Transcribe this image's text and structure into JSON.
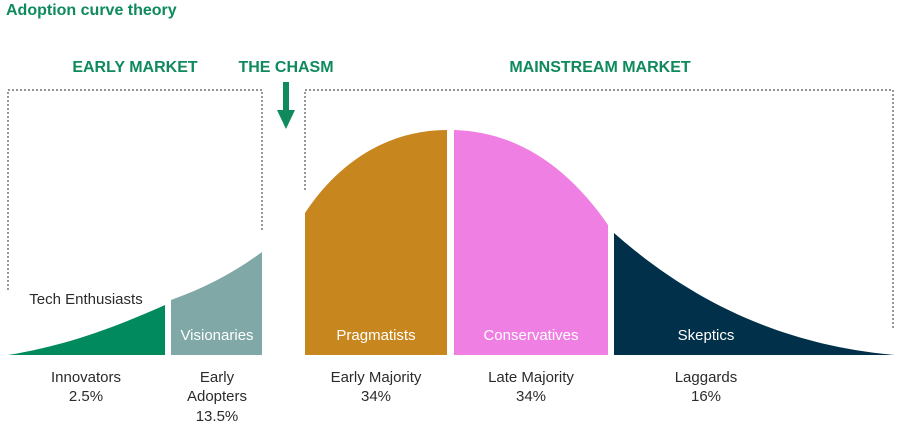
{
  "title": "Adoption curve theory",
  "markets": [
    "EARLY MARKET",
    "THE CHASM",
    "MAINSTREAM MARKET"
  ],
  "segments": [
    {
      "label": "Tech Enthusiasts",
      "name_lines": [
        "Innovators"
      ],
      "share": "2.5%"
    },
    {
      "label": "Visionaries",
      "name_lines": [
        "Early",
        "Adopters"
      ],
      "share": "13.5%"
    },
    {
      "label": "Pragmatists",
      "name_lines": [
        "Early Majority"
      ],
      "share": "34%"
    },
    {
      "label": "Conservatives",
      "name_lines": [
        "Late Majority"
      ],
      "share": "34%"
    },
    {
      "label": "Skeptics",
      "name_lines": [
        "Laggards"
      ],
      "share": "16%"
    }
  ]
}
